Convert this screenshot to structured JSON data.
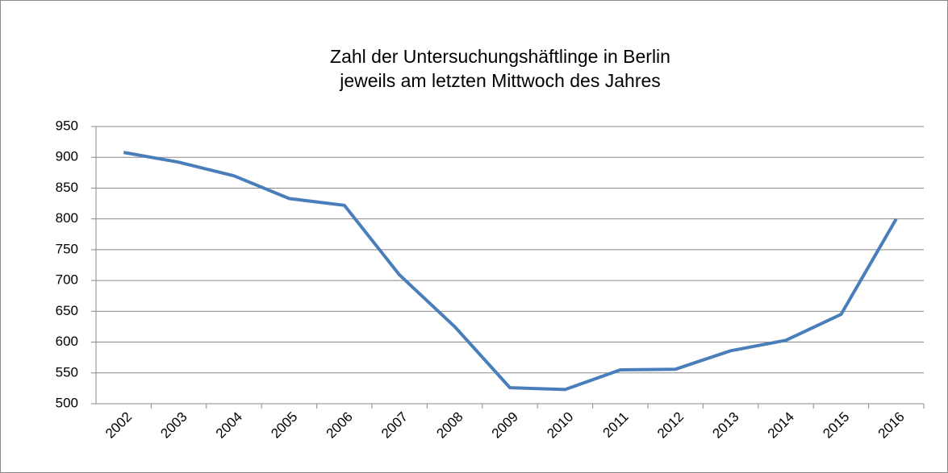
{
  "chart_data": {
    "type": "line",
    "title": "Zahl der Untersuchungshäftlinge in Berlin",
    "subtitle": "jeweils am letzten Mittwoch des Jahres",
    "categories": [
      "2002",
      "2003",
      "2004",
      "2005",
      "2006",
      "2007",
      "2008",
      "2009",
      "2010",
      "2011",
      "2012",
      "2013",
      "2014",
      "2015",
      "2016"
    ],
    "values": [
      908,
      892,
      870,
      833,
      822,
      709,
      625,
      526,
      523,
      555,
      556,
      586,
      603,
      645,
      800
    ],
    "color": "#4a7ebb",
    "ylim": [
      500,
      950
    ],
    "yticks": [
      500,
      550,
      600,
      650,
      700,
      750,
      800,
      850,
      900,
      950
    ],
    "grid": true
  }
}
